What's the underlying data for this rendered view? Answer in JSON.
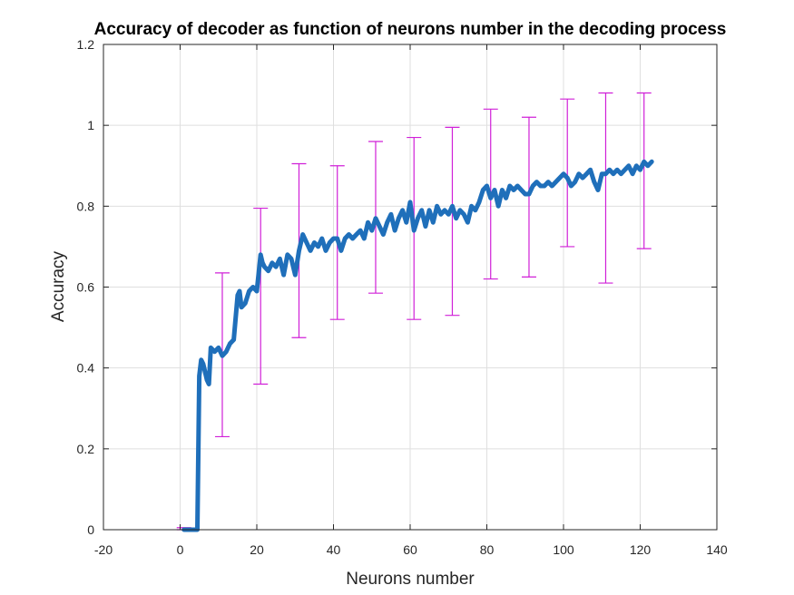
{
  "chart_data": {
    "type": "line",
    "title": "Accuracy of decoder as function of neurons number in the decoding process",
    "xlabel": "Neurons number",
    "ylabel": "Accuracy",
    "xlim": [
      -20,
      140
    ],
    "ylim": [
      0,
      1.2
    ],
    "xticks": [
      "-20",
      "0",
      "20",
      "40",
      "60",
      "80",
      "100",
      "120",
      "140"
    ],
    "yticks": [
      "0",
      "0.2",
      "0.4",
      "0.6",
      "0.8",
      "1",
      "1.2"
    ],
    "grid": true,
    "colors": {
      "line": "#1f6fba",
      "errorbar": "#d020d8"
    },
    "series": [
      {
        "x": [
          1,
          2,
          3,
          4,
          4.5,
          5,
          5.5,
          6,
          7,
          7.5,
          8,
          9,
          10,
          11,
          12,
          13,
          14,
          15,
          15.5,
          16,
          17,
          18,
          19,
          20,
          21,
          21.5,
          22,
          23,
          24,
          25,
          26,
          27,
          28,
          29,
          30,
          31,
          32,
          33,
          34,
          35,
          36,
          37,
          38,
          39,
          40,
          41,
          42,
          43,
          44,
          45,
          46,
          47,
          48,
          49,
          50,
          51,
          52,
          53,
          54,
          55,
          56,
          57,
          58,
          59,
          60,
          61,
          62,
          63,
          64,
          65,
          66,
          67,
          68,
          69,
          70,
          71,
          72,
          73,
          74,
          75,
          76,
          77,
          78,
          79,
          80,
          81,
          82,
          83,
          84,
          85,
          86,
          87,
          88,
          89,
          90,
          91,
          92,
          93,
          94,
          95,
          96,
          97,
          98,
          99,
          100,
          101,
          102,
          103,
          104,
          105,
          106,
          107,
          108,
          109,
          110,
          111,
          112,
          113,
          114,
          115,
          116,
          117,
          118,
          119,
          120,
          121,
          122,
          123
        ],
        "y": [
          0,
          0,
          0,
          0,
          0,
          0.38,
          0.42,
          0.41,
          0.37,
          0.36,
          0.45,
          0.44,
          0.45,
          0.43,
          0.44,
          0.46,
          0.47,
          0.58,
          0.59,
          0.55,
          0.56,
          0.59,
          0.6,
          0.59,
          0.68,
          0.66,
          0.65,
          0.64,
          0.66,
          0.65,
          0.67,
          0.63,
          0.68,
          0.67,
          0.63,
          0.69,
          0.73,
          0.71,
          0.69,
          0.71,
          0.7,
          0.72,
          0.69,
          0.71,
          0.72,
          0.72,
          0.69,
          0.72,
          0.73,
          0.72,
          0.73,
          0.74,
          0.72,
          0.76,
          0.74,
          0.77,
          0.75,
          0.73,
          0.76,
          0.78,
          0.74,
          0.77,
          0.79,
          0.76,
          0.81,
          0.74,
          0.77,
          0.79,
          0.75,
          0.79,
          0.76,
          0.8,
          0.78,
          0.79,
          0.78,
          0.8,
          0.77,
          0.79,
          0.78,
          0.76,
          0.8,
          0.79,
          0.81,
          0.84,
          0.85,
          0.82,
          0.84,
          0.8,
          0.84,
          0.82,
          0.85,
          0.84,
          0.85,
          0.84,
          0.83,
          0.83,
          0.85,
          0.86,
          0.85,
          0.85,
          0.86,
          0.85,
          0.86,
          0.87,
          0.88,
          0.87,
          0.85,
          0.86,
          0.88,
          0.87,
          0.88,
          0.89,
          0.86,
          0.84,
          0.88,
          0.88,
          0.89,
          0.88,
          0.89,
          0.88,
          0.89,
          0.9,
          0.88,
          0.9,
          0.89,
          0.91,
          0.9,
          0.91
        ]
      }
    ],
    "errorbars": [
      {
        "x": 1,
        "y": 0,
        "lower": 0,
        "upper": 0.005
      },
      {
        "x": 11,
        "y": 0.435,
        "lower": 0.23,
        "upper": 0.635
      },
      {
        "x": 21,
        "y": 0.58,
        "lower": 0.36,
        "upper": 0.795
      },
      {
        "x": 31,
        "y": 0.69,
        "lower": 0.475,
        "upper": 0.905
      },
      {
        "x": 41,
        "y": 0.71,
        "lower": 0.52,
        "upper": 0.9
      },
      {
        "x": 51,
        "y": 0.775,
        "lower": 0.585,
        "upper": 0.96
      },
      {
        "x": 61,
        "y": 0.745,
        "lower": 0.52,
        "upper": 0.97
      },
      {
        "x": 71,
        "y": 0.765,
        "lower": 0.53,
        "upper": 0.995
      },
      {
        "x": 81,
        "y": 0.83,
        "lower": 0.62,
        "upper": 1.04
      },
      {
        "x": 91,
        "y": 0.825,
        "lower": 0.625,
        "upper": 1.02
      },
      {
        "x": 101,
        "y": 0.885,
        "lower": 0.7,
        "upper": 1.065
      },
      {
        "x": 111,
        "y": 0.845,
        "lower": 0.61,
        "upper": 1.08
      },
      {
        "x": 121,
        "y": 0.885,
        "lower": 0.695,
        "upper": 1.08
      }
    ]
  }
}
